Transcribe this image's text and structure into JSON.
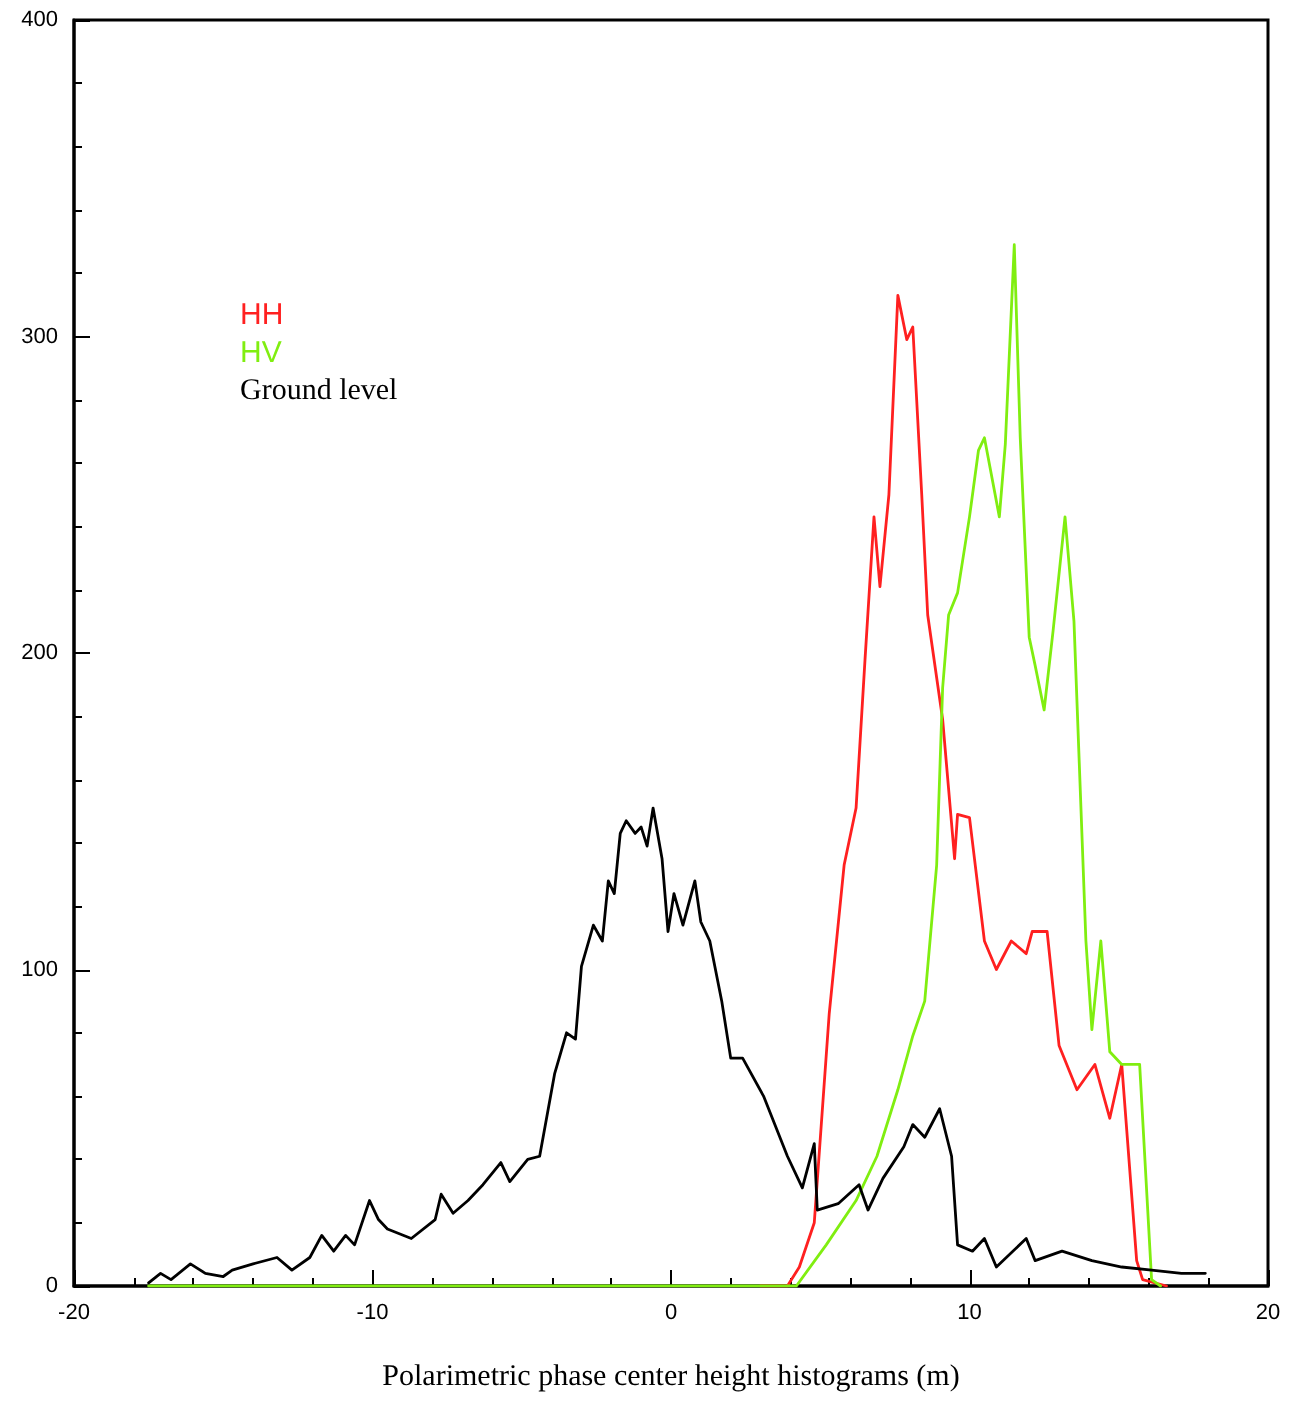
{
  "chart_data": {
    "type": "line",
    "xlabel": "Polarimetric phase center height histograms (m)",
    "xlim": [
      -20,
      20
    ],
    "xticks": [
      -20,
      -10,
      0,
      10,
      20
    ],
    "ylim": [
      0,
      400
    ],
    "yticks": [
      0,
      100,
      200,
      300,
      400
    ],
    "grid": false,
    "legend": "top left",
    "marker": "none",
    "line_style": "solid",
    "series": [
      {
        "name": "HH",
        "color": "#ff2020",
        "x": [
          3.0,
          3.9,
          4.3,
          4.8,
          5.3,
          5.8,
          6.2,
          6.5,
          6.8,
          7.0,
          7.3,
          7.6,
          7.9,
          8.1,
          8.4,
          8.6,
          9.1,
          9.5,
          9.6,
          10.0,
          10.5,
          10.9,
          11.4,
          11.9,
          12.1,
          12.6,
          13.0,
          13.6,
          14.2,
          14.7,
          15.1,
          15.6,
          15.8,
          16.6
        ],
        "values": [
          0,
          0,
          6,
          20,
          86,
          133,
          151,
          198,
          243,
          221,
          250,
          313,
          299,
          303,
          250,
          212,
          179,
          135,
          149,
          148,
          109,
          100,
          109,
          105,
          112,
          112,
          76,
          62,
          70,
          53,
          70,
          8,
          2,
          0
        ]
      },
      {
        "name": "HV",
        "color": "#80ee10",
        "x": [
          -17.5,
          4.2,
          5.2,
          6.2,
          6.9,
          7.6,
          8.1,
          8.5,
          8.9,
          9.1,
          9.3,
          9.6,
          10.0,
          10.3,
          10.5,
          11.0,
          11.2,
          11.5,
          11.7,
          12.0,
          12.2,
          12.5,
          12.8,
          13.2,
          13.5,
          13.9,
          14.1,
          14.4,
          14.7,
          15.1,
          15.7,
          16.1,
          16.4
        ],
        "values": [
          0,
          0,
          13,
          27,
          41,
          62,
          79,
          90,
          133,
          189,
          212,
          219,
          243,
          264,
          268,
          243,
          266,
          329,
          268,
          205,
          196,
          182,
          207,
          243,
          210,
          109,
          81,
          109,
          74,
          70,
          70,
          2,
          0
        ]
      },
      {
        "name": "Ground level",
        "color": "#000000",
        "x": [
          -17.5,
          -17.1,
          -16.75,
          -16.1,
          -15.6,
          -15.0,
          -14.7,
          -14.0,
          -13.2,
          -12.7,
          -12.1,
          -11.7,
          -11.3,
          -10.9,
          -10.6,
          -10.1,
          -9.8,
          -9.5,
          -8.7,
          -7.9,
          -7.7,
          -7.3,
          -6.8,
          -6.3,
          -5.7,
          -5.4,
          -4.8,
          -4.4,
          -3.9,
          -3.5,
          -3.2,
          -3.0,
          -2.6,
          -2.3,
          -2.1,
          -1.9,
          -1.7,
          -1.5,
          -1.2,
          -1.0,
          -0.8,
          -0.6,
          -0.3,
          -0.1,
          0.1,
          0.4,
          0.8,
          1.0,
          1.3,
          1.7,
          2.0,
          2.4,
          3.1,
          3.9,
          4.4,
          4.8,
          4.9,
          5.6,
          6.3,
          6.6,
          7.1,
          7.8,
          8.1,
          8.5,
          9.0,
          9.4,
          9.6,
          10.1,
          10.5,
          10.9,
          11.9,
          12.2,
          13.1,
          14.1,
          15.1,
          16.1,
          17.1,
          17.9
        ],
        "values": [
          1,
          4,
          2,
          7,
          4,
          3,
          5,
          7,
          9,
          5,
          9,
          16,
          11,
          16,
          13,
          27,
          21,
          18,
          15,
          21,
          29,
          23,
          27,
          32,
          39,
          33,
          40,
          41,
          67,
          80,
          78,
          101,
          114,
          109,
          128,
          124,
          143,
          147,
          143,
          145,
          139,
          151,
          135,
          112,
          124,
          114,
          128,
          115,
          109,
          90,
          72,
          72,
          60,
          41,
          31,
          45,
          24,
          26,
          32,
          24,
          34,
          44,
          51,
          47,
          56,
          41,
          13,
          11,
          15,
          6,
          15,
          8,
          11,
          8,
          6,
          5,
          4,
          4
        ]
      }
    ]
  }
}
